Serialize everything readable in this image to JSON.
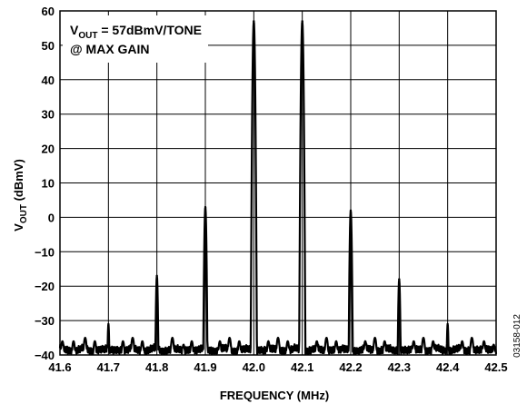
{
  "chart_data": {
    "type": "line",
    "xlabel": "FREQUENCY (MHz)",
    "ylabel": {
      "main": "V",
      "sub": "OUT",
      "rest": " (dBmV)"
    },
    "annotation": {
      "line1_main": "V",
      "line1_sub": "OUT",
      "line1_rest": " = 57dBmV/TONE",
      "line2": "@ MAX GAIN"
    },
    "figure_id": "03158-012",
    "xlim": [
      41.6,
      42.5
    ],
    "ylim": [
      -40,
      60
    ],
    "xticks": [
      "41.6",
      "41.7",
      "41.8",
      "41.9",
      "42.0",
      "42.1",
      "42.2",
      "42.3",
      "42.4",
      "42.5"
    ],
    "yticks": [
      "60",
      "50",
      "40",
      "30",
      "20",
      "10",
      "0",
      "−10",
      "−20",
      "−30",
      "−40"
    ],
    "grid": true,
    "series_color": "#000000",
    "noise_floor_dBmV": -38,
    "peaks": [
      {
        "x": 41.7,
        "y": -31
      },
      {
        "x": 41.8,
        "y": -17
      },
      {
        "x": 41.9,
        "y": 3
      },
      {
        "x": 42.0,
        "y": 57
      },
      {
        "x": 42.1,
        "y": 57
      },
      {
        "x": 42.2,
        "y": 2
      },
      {
        "x": 42.3,
        "y": -18
      },
      {
        "x": 42.4,
        "y": -31
      }
    ],
    "spurs": [
      {
        "x": 41.605,
        "y": -36
      },
      {
        "x": 41.628,
        "y": -36
      },
      {
        "x": 41.652,
        "y": -35
      },
      {
        "x": 41.672,
        "y": -36
      },
      {
        "x": 41.73,
        "y": -36
      },
      {
        "x": 41.75,
        "y": -35
      },
      {
        "x": 41.77,
        "y": -36
      },
      {
        "x": 41.832,
        "y": -35
      },
      {
        "x": 41.855,
        "y": -37
      },
      {
        "x": 41.872,
        "y": -36
      },
      {
        "x": 41.93,
        "y": -36
      },
      {
        "x": 41.95,
        "y": -35
      },
      {
        "x": 41.97,
        "y": -36
      },
      {
        "x": 42.03,
        "y": -36
      },
      {
        "x": 42.05,
        "y": -35
      },
      {
        "x": 42.07,
        "y": -36
      },
      {
        "x": 42.13,
        "y": -36
      },
      {
        "x": 42.15,
        "y": -35
      },
      {
        "x": 42.17,
        "y": -36
      },
      {
        "x": 42.23,
        "y": -36
      },
      {
        "x": 42.25,
        "y": -35
      },
      {
        "x": 42.27,
        "y": -36
      },
      {
        "x": 42.33,
        "y": -36
      },
      {
        "x": 42.35,
        "y": -35
      },
      {
        "x": 42.37,
        "y": -36
      },
      {
        "x": 42.43,
        "y": -36
      },
      {
        "x": 42.45,
        "y": -35
      },
      {
        "x": 42.475,
        "y": -36
      },
      {
        "x": 42.495,
        "y": -37
      }
    ]
  }
}
